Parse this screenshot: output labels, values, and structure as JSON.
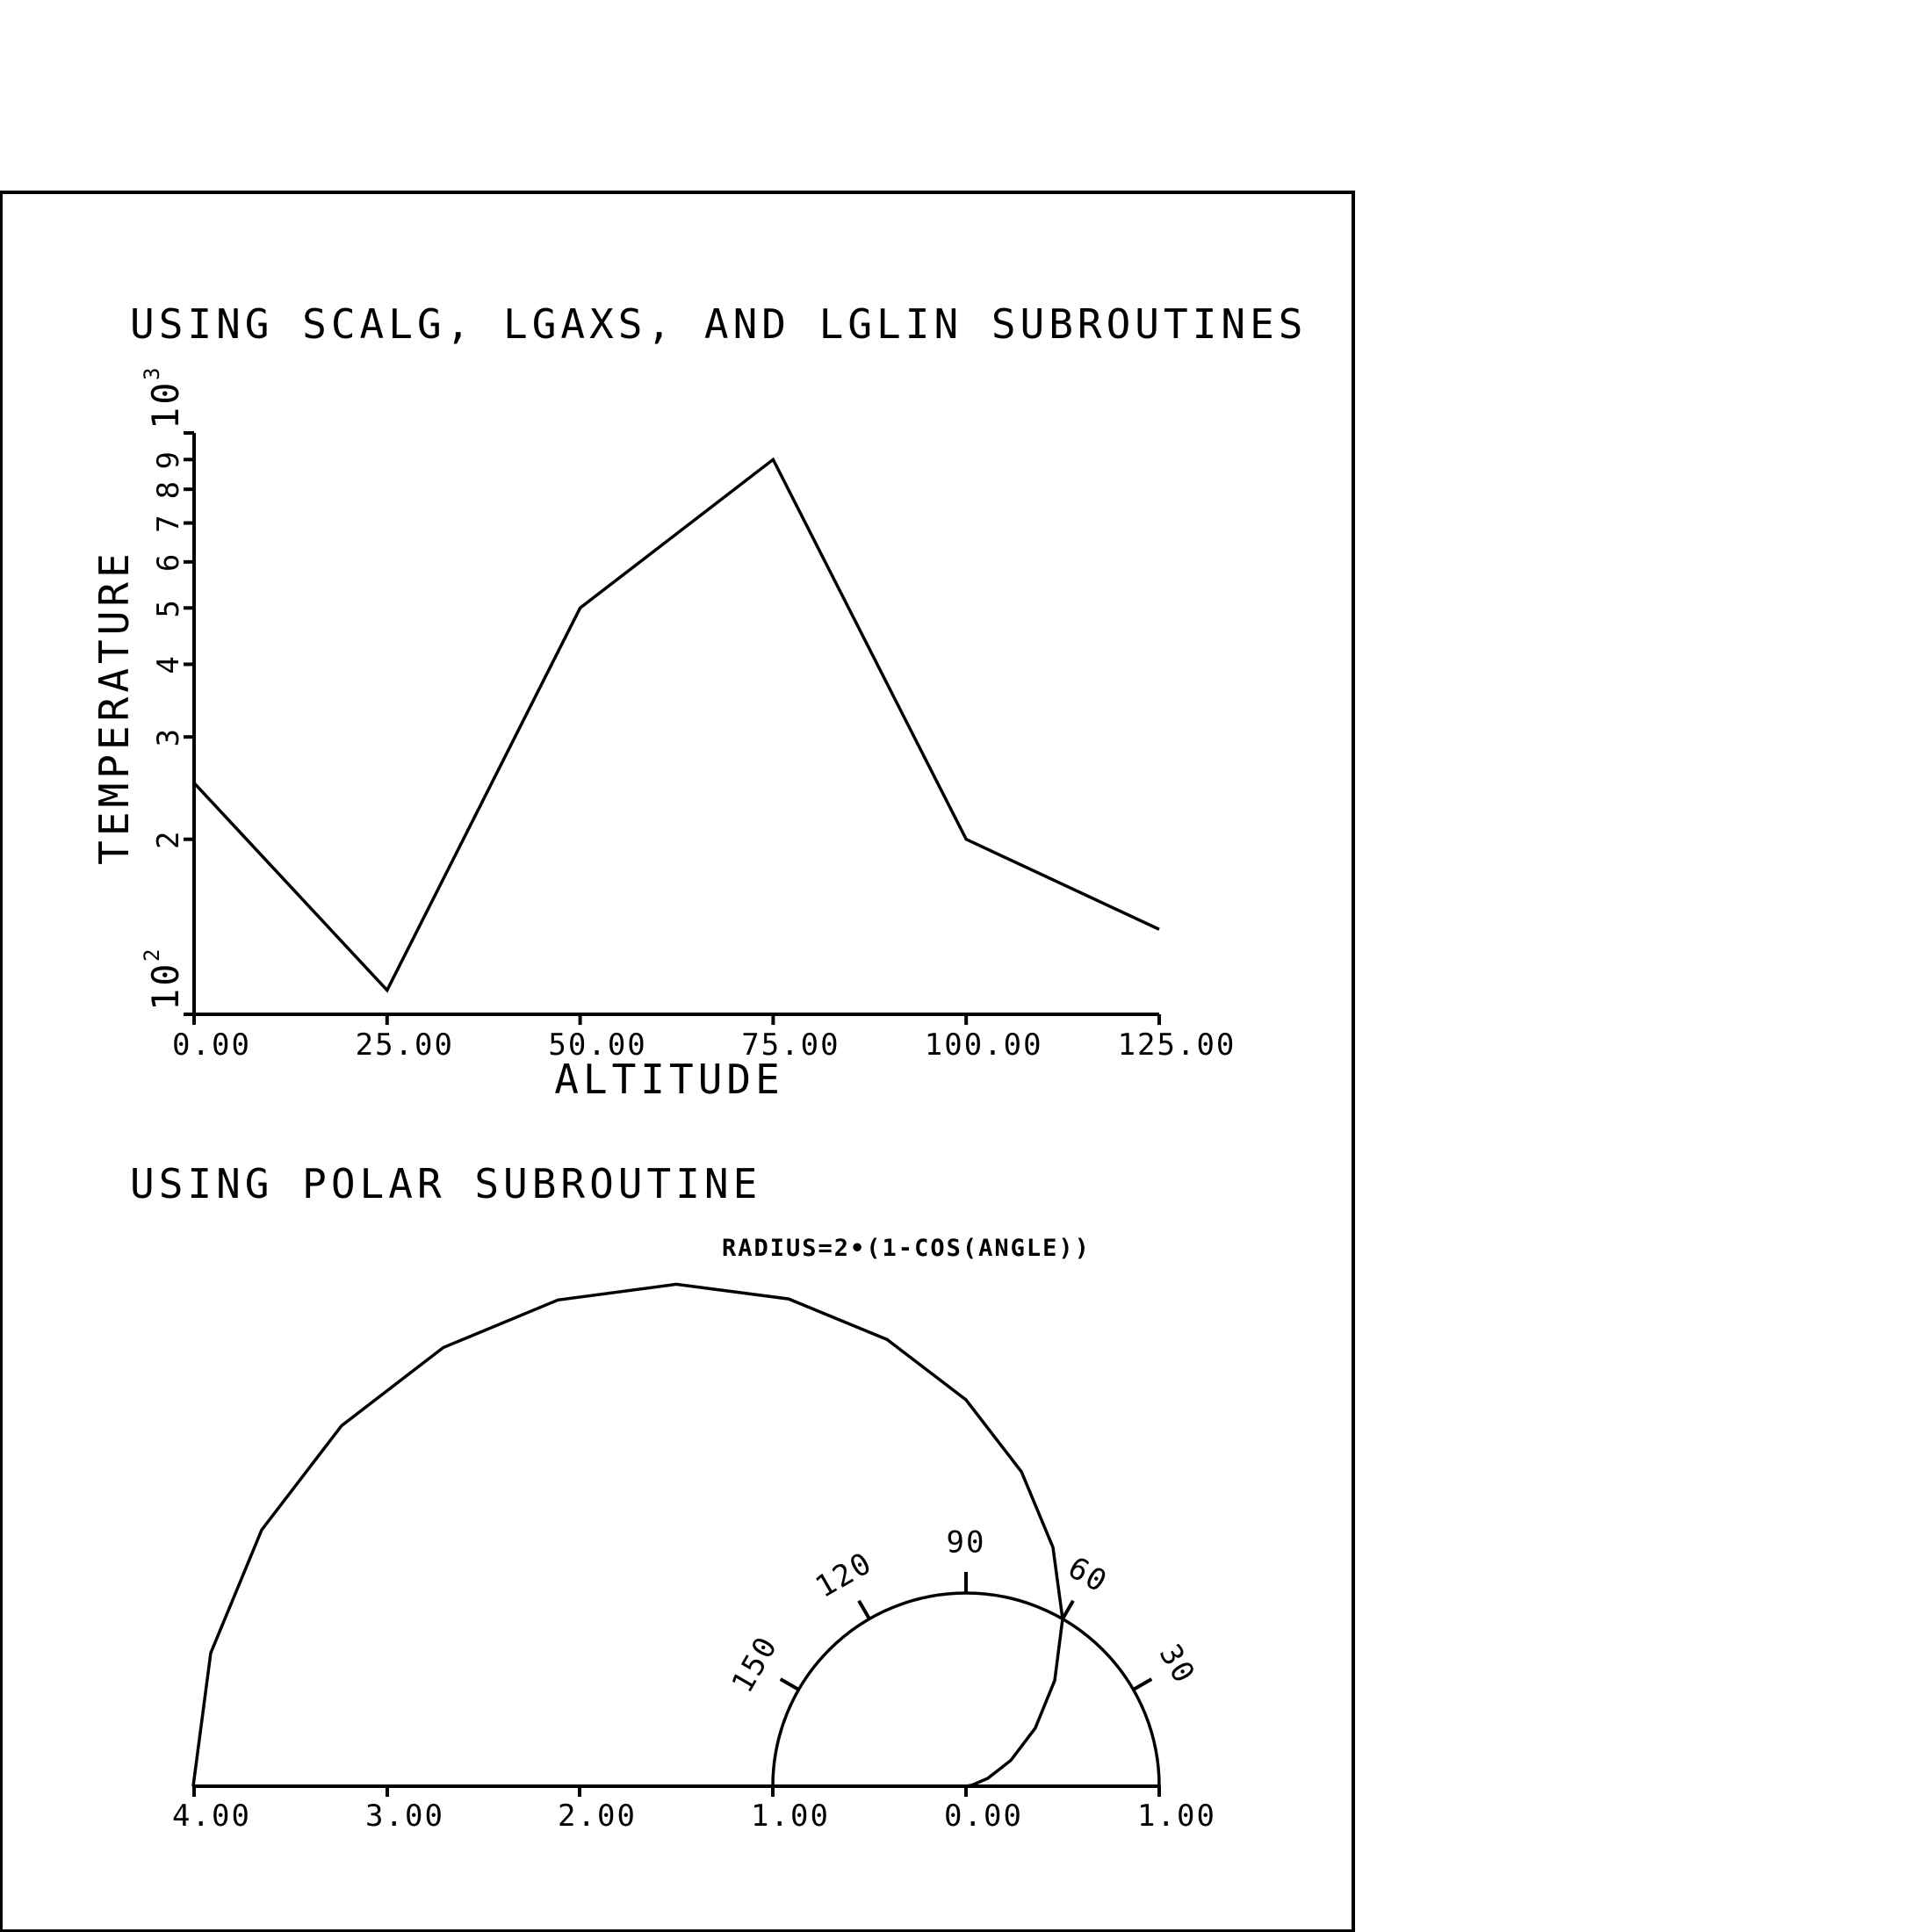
{
  "chart_data": [
    {
      "type": "line",
      "title": "USING SCALG, LGAXS, AND LGLIN SUBROUTINES",
      "xlabel": "ALTITUDE",
      "ylabel": "TEMPERATURE",
      "x_scale": "linear",
      "y_scale": "log",
      "xlim": [
        0,
        125
      ],
      "ylim": [
        100,
        1000
      ],
      "x_ticks": [
        "0.00",
        "25.00",
        "50.00",
        "75.00",
        "100.00",
        "125.00"
      ],
      "y_minor_ticks": [
        "2",
        "3",
        "4",
        "5",
        "6",
        "7",
        "8",
        "9"
      ],
      "y_decade_labels": [
        {
          "base": "10",
          "exp": "2",
          "value": 100
        },
        {
          "base": "10",
          "exp": "3",
          "value": 1000
        }
      ],
      "grid": false,
      "series": [
        {
          "x": [
            0,
            25,
            50,
            75,
            100,
            125
          ],
          "y": [
            250,
            110,
            500,
            900,
            200,
            140
          ]
        }
      ]
    },
    {
      "type": "polar",
      "title": "USING POLAR SUBROUTINE",
      "annotation": "RADIUS=2•(1-COS(ANGLE))",
      "angle_unit": "degrees",
      "angle_range": [
        0,
        180
      ],
      "angle_step": 10,
      "radius_formula": "2*(1-cos(angle))",
      "radius_axis_labels": [
        "4.00",
        "3.00",
        "2.00",
        "1.00",
        "0.00",
        "1.00"
      ],
      "reference_circle_radius": 1,
      "angle_tick_labels": [
        "30",
        "60",
        "90",
        "120",
        "150"
      ],
      "grid": false
    }
  ]
}
